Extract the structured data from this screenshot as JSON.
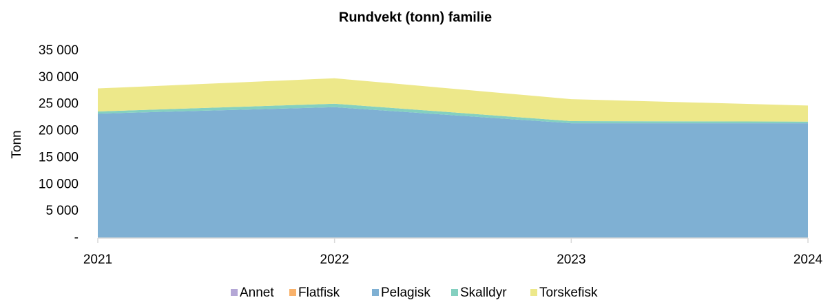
{
  "chart_data": {
    "type": "stacked_area",
    "title": "Rundvekt (tonn) familie",
    "y_label": "Tonn",
    "categories": [
      "2021",
      "2022",
      "2023",
      "2024"
    ],
    "series": [
      {
        "name": "Annet",
        "color": "#b4a7d6",
        "values": [
          50,
          50,
          50,
          50
        ]
      },
      {
        "name": "Flatfisk",
        "color": "#f9b26b",
        "values": [
          30,
          30,
          30,
          30
        ]
      },
      {
        "name": "Pelagisk",
        "color": "#7fb0d3",
        "values": [
          23200,
          24400,
          21400,
          21400
        ]
      },
      {
        "name": "Skalldyr",
        "color": "#84d0c0",
        "values": [
          400,
          650,
          400,
          300
        ]
      },
      {
        "name": "Torskefisk",
        "color": "#ede88a",
        "values": [
          4300,
          4750,
          4100,
          3000
        ]
      }
    ],
    "ylim": [
      0,
      35000
    ],
    "yticks": [
      {
        "value": 0,
        "label": "-"
      },
      {
        "value": 5000,
        "label": "5 000"
      },
      {
        "value": 10000,
        "label": "10 000"
      },
      {
        "value": 15000,
        "label": "15 000"
      },
      {
        "value": 20000,
        "label": "20 000"
      },
      {
        "value": 25000,
        "label": "25 000"
      },
      {
        "value": 30000,
        "label": "30 000"
      },
      {
        "value": 35000,
        "label": "35 000"
      }
    ],
    "legend": "bottom"
  }
}
